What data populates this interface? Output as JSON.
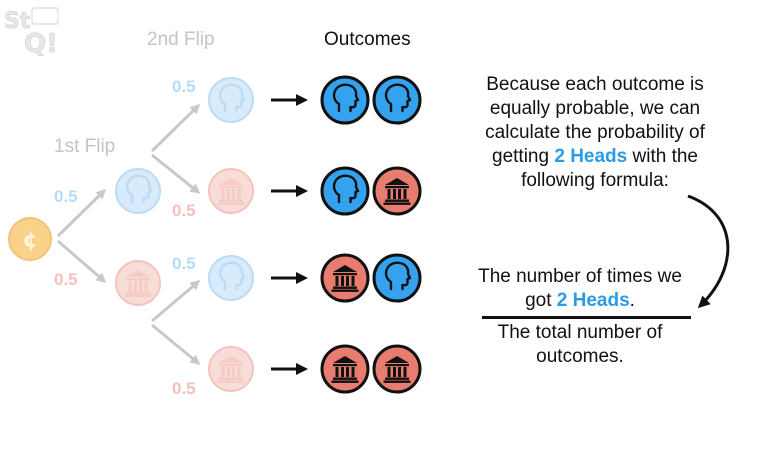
{
  "logo": {
    "text": "StatQuest"
  },
  "headers": {
    "first_flip": "1st Flip",
    "second_flip": "2nd Flip",
    "outcomes": "Outcomes"
  },
  "probabilities": {
    "first_heads": "0.5",
    "first_tails": "0.5",
    "after_heads_heads": "0.5",
    "after_heads_tails": "0.5",
    "after_tails_heads": "0.5",
    "after_tails_tails": "0.5"
  },
  "explanation": {
    "before": "Because each outcome is equally probable, we can calculate the probability of getting ",
    "highlight": "2 Heads",
    "after": " with the following formula:"
  },
  "formula": {
    "numerator_before": "The number of times we got ",
    "numerator_highlight": "2 Heads",
    "numerator_after": ".",
    "denominator": "The total number of outcomes."
  },
  "coin_icons": {
    "start": "cent-icon",
    "heads": "head-silhouette-icon",
    "tails": "building-icon"
  },
  "outcome_rows": [
    [
      "heads",
      "heads"
    ],
    [
      "heads",
      "tails"
    ],
    [
      "tails",
      "heads"
    ],
    [
      "tails",
      "tails"
    ]
  ],
  "colors": {
    "heads_fill": "#35a2ef",
    "tails_fill": "#e87c6f",
    "heads_faded": "#d7ebfb",
    "tails_faded": "#f8dcd8",
    "start_fill": "#fbd28a",
    "highlight": "#2b9be6",
    "faded_text": "#c4c4c4"
  }
}
